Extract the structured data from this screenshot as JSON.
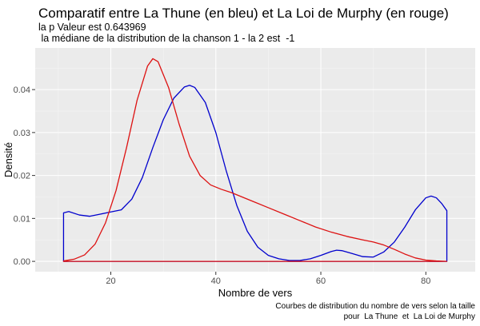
{
  "chart_data": {
    "type": "area",
    "title": "Comparatif entre  La Thune  (en bleu) et  La Loi de Murphy  (en rouge)",
    "subtitle_lines": [
      "la p Valeur est  0.643969",
      " la médiane de la distribution de la chanson 1 - la 2 est  -1"
    ],
    "xlabel": "Nombre de vers",
    "ylabel": "Densité",
    "caption_lines": [
      "Courbes de distribution du nombre de vers selon la taille",
      "pour  La Thune  et  La Loi de Murphy"
    ],
    "xlim": [
      5.6,
      89.4
    ],
    "ylim": [
      -0.0024,
      0.0497
    ],
    "x_ticks": [
      20,
      40,
      60,
      80
    ],
    "x_tick_labels": [
      "20",
      "40",
      "60",
      "80"
    ],
    "y_ticks": [
      0,
      0.01,
      0.02,
      0.03,
      0.04
    ],
    "y_tick_labels": [
      "0.00",
      "0.01",
      "0.02",
      "0.03",
      "0.04"
    ],
    "grid": true,
    "panel_background": "#ebebeb",
    "grid_color": "#ffffff",
    "series": [
      {
        "name": "La Thune",
        "color": "#0000cd",
        "x": [
          11,
          12,
          14,
          16,
          18,
          20,
          22,
          24,
          26,
          28,
          30,
          32,
          34,
          35,
          36,
          38,
          40,
          42,
          44,
          46,
          48,
          50,
          52,
          54,
          56,
          58,
          60,
          62,
          63,
          64,
          66,
          68,
          70,
          72,
          74,
          76,
          78,
          80,
          81,
          82,
          83,
          84
        ],
        "y": [
          0.0113,
          0.0116,
          0.0108,
          0.0105,
          0.011,
          0.0115,
          0.012,
          0.0145,
          0.0195,
          0.0265,
          0.033,
          0.038,
          0.0406,
          0.041,
          0.0405,
          0.037,
          0.03,
          0.021,
          0.013,
          0.007,
          0.0033,
          0.0014,
          0.0006,
          0.0002,
          0.0002,
          0.0006,
          0.0014,
          0.0023,
          0.0026,
          0.0025,
          0.0018,
          0.0011,
          0.001,
          0.0022,
          0.0045,
          0.008,
          0.012,
          0.0148,
          0.0152,
          0.0148,
          0.0135,
          0.0118
        ]
      },
      {
        "name": "La Loi de Murphy",
        "color": "#dd1111",
        "x": [
          11,
          13,
          15,
          17,
          19,
          21,
          23,
          25,
          27,
          28,
          29,
          31,
          33,
          35,
          37,
          39,
          41,
          43,
          45,
          47,
          50,
          53,
          56,
          59,
          62,
          65,
          68,
          70,
          72,
          74,
          76,
          78,
          80,
          82,
          84
        ],
        "y": [
          0.0001,
          0.0005,
          0.0015,
          0.004,
          0.009,
          0.0165,
          0.0265,
          0.0375,
          0.0455,
          0.0472,
          0.0465,
          0.0405,
          0.032,
          0.0245,
          0.02,
          0.0178,
          0.0168,
          0.016,
          0.015,
          0.014,
          0.0125,
          0.011,
          0.0095,
          0.008,
          0.0068,
          0.0058,
          0.005,
          0.0045,
          0.0038,
          0.0028,
          0.0017,
          0.0008,
          0.0003,
          0.0001,
          0.0
        ]
      }
    ]
  }
}
